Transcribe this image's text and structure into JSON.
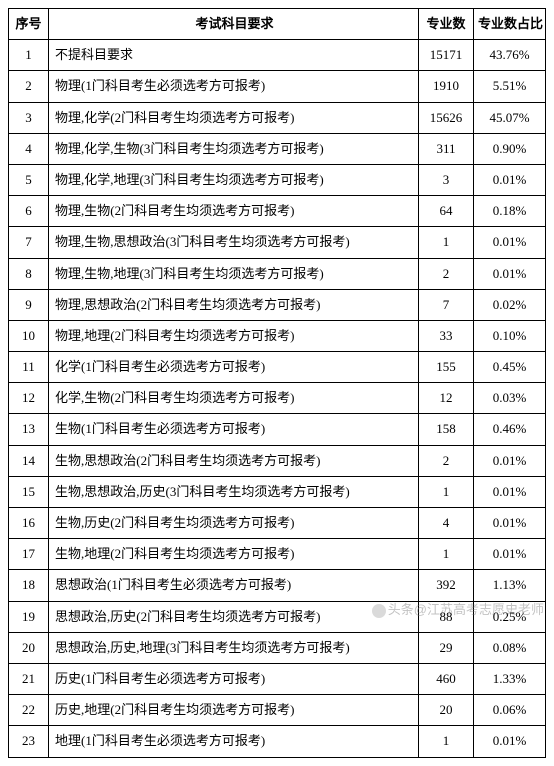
{
  "table": {
    "headers": {
      "seq": "序号",
      "requirement": "考试科目要求",
      "count": "专业数",
      "percent": "专业数占比"
    },
    "rows": [
      {
        "seq": "1",
        "req": "不提科目要求",
        "count": "15171",
        "pct": "43.76%"
      },
      {
        "seq": "2",
        "req": "物理(1门科目考生必须选考方可报考)",
        "count": "1910",
        "pct": "5.51%"
      },
      {
        "seq": "3",
        "req": "物理,化学(2门科目考生均须选考方可报考)",
        "count": "15626",
        "pct": "45.07%"
      },
      {
        "seq": "4",
        "req": "物理,化学,生物(3门科目考生均须选考方可报考)",
        "count": "311",
        "pct": "0.90%"
      },
      {
        "seq": "5",
        "req": "物理,化学,地理(3门科目考生均须选考方可报考)",
        "count": "3",
        "pct": "0.01%"
      },
      {
        "seq": "6",
        "req": "物理,生物(2门科目考生均须选考方可报考)",
        "count": "64",
        "pct": "0.18%"
      },
      {
        "seq": "7",
        "req": "物理,生物,思想政治(3门科目考生均须选考方可报考)",
        "count": "1",
        "pct": "0.01%"
      },
      {
        "seq": "8",
        "req": "物理,生物,地理(3门科目考生均须选考方可报考)",
        "count": "2",
        "pct": "0.01%"
      },
      {
        "seq": "9",
        "req": "物理,思想政治(2门科目考生均须选考方可报考)",
        "count": "7",
        "pct": "0.02%"
      },
      {
        "seq": "10",
        "req": "物理,地理(2门科目考生均须选考方可报考)",
        "count": "33",
        "pct": "0.10%"
      },
      {
        "seq": "11",
        "req": "化学(1门科目考生必须选考方可报考)",
        "count": "155",
        "pct": "0.45%"
      },
      {
        "seq": "12",
        "req": "化学,生物(2门科目考生均须选考方可报考)",
        "count": "12",
        "pct": "0.03%"
      },
      {
        "seq": "13",
        "req": "生物(1门科目考生必须选考方可报考)",
        "count": "158",
        "pct": "0.46%"
      },
      {
        "seq": "14",
        "req": "生物,思想政治(2门科目考生均须选考方可报考)",
        "count": "2",
        "pct": "0.01%"
      },
      {
        "seq": "15",
        "req": "生物,思想政治,历史(3门科目考生均须选考方可报考)",
        "count": "1",
        "pct": "0.01%"
      },
      {
        "seq": "16",
        "req": "生物,历史(2门科目考生均须选考方可报考)",
        "count": "4",
        "pct": "0.01%"
      },
      {
        "seq": "17",
        "req": "生物,地理(2门科目考生均须选考方可报考)",
        "count": "1",
        "pct": "0.01%"
      },
      {
        "seq": "18",
        "req": "思想政治(1门科目考生必须选考方可报考)",
        "count": "392",
        "pct": "1.13%"
      },
      {
        "seq": "19",
        "req": "思想政治,历史(2门科目考生均须选考方可报考)",
        "count": "88",
        "pct": "0.25%"
      },
      {
        "seq": "20",
        "req": "思想政治,历史,地理(3门科目考生均须选考方可报考)",
        "count": "29",
        "pct": "0.08%"
      },
      {
        "seq": "21",
        "req": "历史(1门科目考生必须选考方可报考)",
        "count": "460",
        "pct": "1.33%"
      },
      {
        "seq": "22",
        "req": "历史,地理(2门科目考生均须选考方可报考)",
        "count": "20",
        "pct": "0.06%"
      },
      {
        "seq": "23",
        "req": "地理(1门科目考生必须选考方可报考)",
        "count": "1",
        "pct": "0.01%"
      }
    ]
  },
  "watermark": {
    "text": "头条@江苏高考志愿史老师"
  },
  "style": {
    "border_color": "#000000",
    "background_color": "#ffffff",
    "font_family": "SimSun",
    "header_fontsize": 13,
    "cell_fontsize": 13
  }
}
